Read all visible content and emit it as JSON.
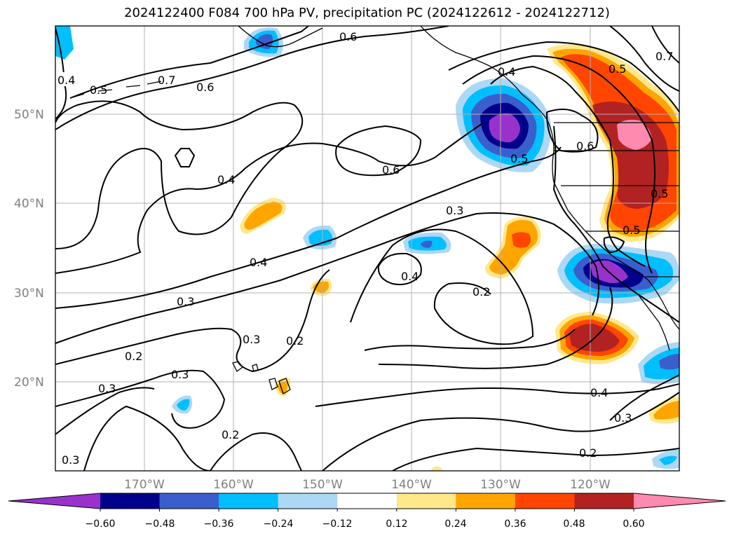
{
  "title": "2024122400 F084 700 hPa PV, precipitation PC (2024122612 - 2024122712)",
  "map": {
    "lat_labels": [
      "50°N",
      "40°N",
      "30°N",
      "20°N"
    ],
    "lon_labels": [
      "170°W",
      "160°W",
      "150°W",
      "140°W",
      "130°W",
      "120°W"
    ],
    "contour_labels": [
      "0.4",
      "0.5",
      "0.7",
      "0.6",
      "0.6",
      "0.4",
      "0.5",
      "0.6",
      "0.5",
      "0.4",
      "0.6",
      "0.3",
      "0.4",
      "0.3",
      "0.4",
      "0.2",
      "0.3",
      "0.2",
      "0.2",
      "0.3",
      "0.3",
      "0.2",
      "0.4",
      "0.3",
      "0.2",
      "0.3",
      "0.5",
      "0.7",
      "0.5"
    ]
  },
  "colorbar": {
    "ticks": [
      "−0.60",
      "−0.48",
      "−0.36",
      "−0.24",
      "−0.12",
      "0.12",
      "0.24",
      "0.36",
      "0.48",
      "0.60"
    ],
    "colors": [
      "#9932cc",
      "#00008b",
      "#3a5fcd",
      "#00bfff",
      "#add8f5",
      "#ffffff",
      "#ffe88a",
      "#ffa500",
      "#ff4500",
      "#b22222",
      "#ff8ab0"
    ]
  }
}
